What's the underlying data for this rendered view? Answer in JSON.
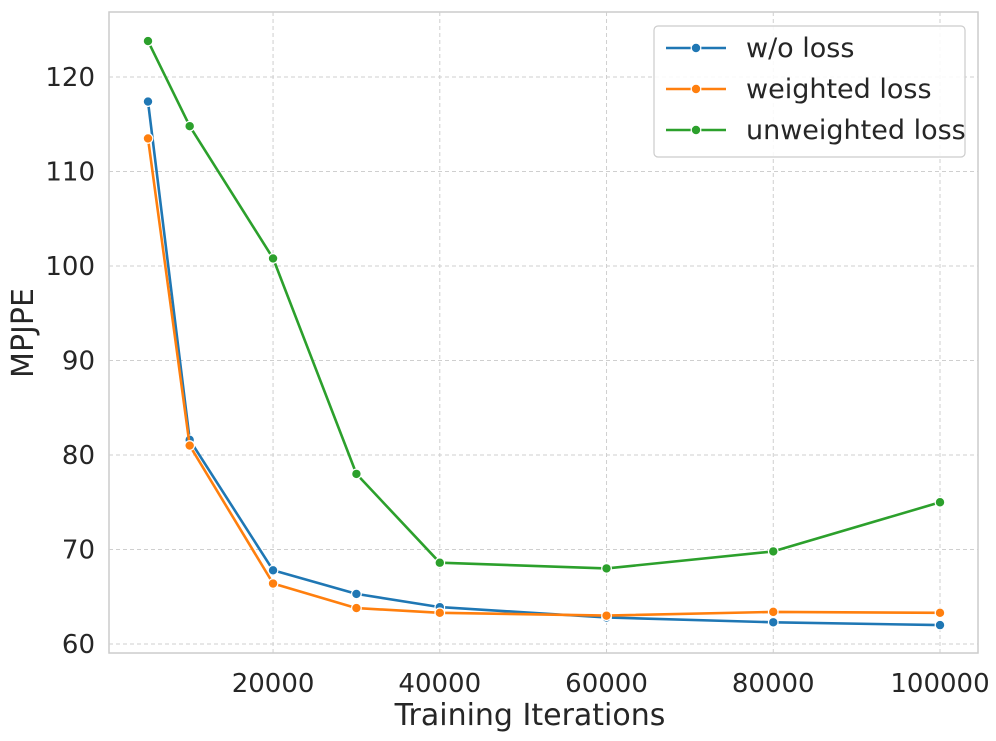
{
  "chart_data": {
    "type": "line",
    "title": "",
    "xlabel": "Training Iterations",
    "ylabel": "MPJPE",
    "xlim": [
      0,
      100000
    ],
    "ylim": [
      59.5,
      126.5
    ],
    "xticks": [
      20000,
      40000,
      60000,
      80000,
      100000
    ],
    "xtick_labels": [
      "20000",
      "40000",
      "60000",
      "80000",
      "100000"
    ],
    "yticks": [
      60,
      70,
      80,
      90,
      100,
      110,
      120
    ],
    "ytick_labels": [
      "60",
      "70",
      "80",
      "90",
      "100",
      "110",
      "120"
    ],
    "grid": true,
    "legend_position": "top-right",
    "x": [
      5000,
      10000,
      20000,
      30000,
      40000,
      60000,
      80000,
      100000
    ],
    "series": [
      {
        "name": "w/o loss",
        "color": "#1f77b4",
        "values": [
          117.4,
          81.6,
          67.8,
          65.3,
          63.9,
          62.8,
          62.3,
          62.0
        ]
      },
      {
        "name": "weighted loss",
        "color": "#ff7f0e",
        "values": [
          113.5,
          81.0,
          66.4,
          63.8,
          63.3,
          63.0,
          63.4,
          63.3
        ]
      },
      {
        "name": "unweighted loss",
        "color": "#2ca02c",
        "values": [
          123.8,
          114.8,
          100.8,
          78.0,
          68.6,
          68.0,
          69.8,
          75.0
        ]
      }
    ]
  }
}
